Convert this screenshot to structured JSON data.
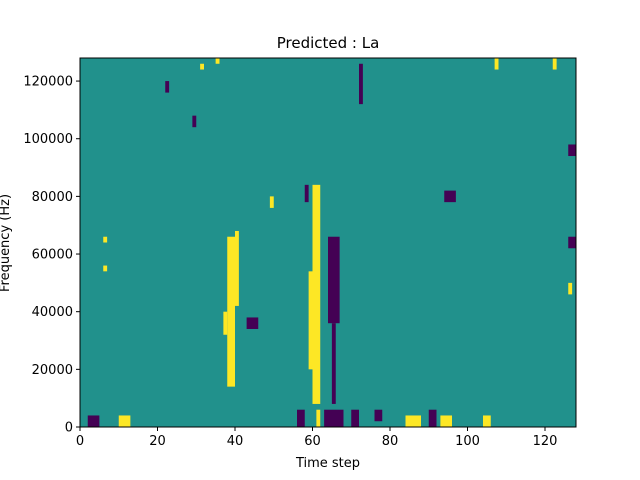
{
  "chart_data": {
    "type": "heatmap",
    "title": "Predicted : La",
    "xlabel": "Time step",
    "ylabel": "Frequency (Hz)",
    "xlim": [
      0,
      128
    ],
    "ylim": [
      0,
      128000
    ],
    "xticks": [
      0,
      20,
      40,
      60,
      80,
      100,
      120
    ],
    "yticks": [
      0,
      20000,
      40000,
      60000,
      80000,
      100000,
      120000
    ],
    "xtick_labels": [
      "0",
      "20",
      "40",
      "60",
      "80",
      "100",
      "120"
    ],
    "ytick_labels": [
      "0",
      "20000",
      "40000",
      "60000",
      "80000",
      "100000",
      "120000"
    ],
    "colors": {
      "background": "#21918c",
      "low": "#440154",
      "high": "#fde725"
    },
    "cells_note_units": "x = time step, y = frequency (Hz)",
    "high_cells": [
      {
        "x": [
          60,
          62
        ],
        "y": [
          8000,
          84000
        ]
      },
      {
        "x": [
          59,
          60
        ],
        "y": [
          20000,
          54000
        ]
      },
      {
        "x": [
          61,
          62
        ],
        "y": [
          0,
          6000
        ]
      },
      {
        "x": [
          10,
          13
        ],
        "y": [
          0,
          4000
        ]
      },
      {
        "x": [
          38,
          40
        ],
        "y": [
          14000,
          66000
        ]
      },
      {
        "x": [
          37,
          38
        ],
        "y": [
          32000,
          40000
        ]
      },
      {
        "x": [
          40,
          41
        ],
        "y": [
          42000,
          68000
        ]
      },
      {
        "x": [
          84,
          88
        ],
        "y": [
          0,
          4000
        ]
      },
      {
        "x": [
          93,
          96
        ],
        "y": [
          0,
          4000
        ]
      },
      {
        "x": [
          104,
          106
        ],
        "y": [
          0,
          4000
        ]
      },
      {
        "x": [
          6,
          7
        ],
        "y": [
          64000,
          66000
        ]
      },
      {
        "x": [
          6,
          7
        ],
        "y": [
          54000,
          56000
        ]
      },
      {
        "x": [
          31,
          32
        ],
        "y": [
          124000,
          126000
        ]
      },
      {
        "x": [
          35,
          36
        ],
        "y": [
          126000,
          128000
        ]
      },
      {
        "x": [
          49,
          50
        ],
        "y": [
          76000,
          80000
        ]
      },
      {
        "x": [
          107,
          108
        ],
        "y": [
          124000,
          128000
        ]
      },
      {
        "x": [
          122,
          123
        ],
        "y": [
          124000,
          128000
        ]
      },
      {
        "x": [
          126,
          127
        ],
        "y": [
          46000,
          50000
        ]
      }
    ],
    "low_cells": [
      {
        "x": [
          64,
          67
        ],
        "y": [
          36000,
          66000
        ]
      },
      {
        "x": [
          65,
          66
        ],
        "y": [
          8000,
          36000
        ]
      },
      {
        "x": [
          63,
          68
        ],
        "y": [
          0,
          6000
        ]
      },
      {
        "x": [
          56,
          58
        ],
        "y": [
          0,
          6000
        ]
      },
      {
        "x": [
          2,
          5
        ],
        "y": [
          0,
          4000
        ]
      },
      {
        "x": [
          43,
          46
        ],
        "y": [
          34000,
          38000
        ]
      },
      {
        "x": [
          58,
          59
        ],
        "y": [
          78000,
          84000
        ]
      },
      {
        "x": [
          70,
          72
        ],
        "y": [
          0,
          6000
        ]
      },
      {
        "x": [
          90,
          92
        ],
        "y": [
          0,
          6000
        ]
      },
      {
        "x": [
          76,
          78
        ],
        "y": [
          2000,
          6000
        ]
      },
      {
        "x": [
          72,
          73
        ],
        "y": [
          112000,
          126000
        ]
      },
      {
        "x": [
          94,
          97
        ],
        "y": [
          78000,
          82000
        ]
      },
      {
        "x": [
          126,
          128
        ],
        "y": [
          62000,
          66000
        ]
      },
      {
        "x": [
          126,
          128
        ],
        "y": [
          94000,
          98000
        ]
      },
      {
        "x": [
          29,
          30
        ],
        "y": [
          104000,
          108000
        ]
      },
      {
        "x": [
          22,
          23
        ],
        "y": [
          116000,
          120000
        ]
      }
    ]
  }
}
